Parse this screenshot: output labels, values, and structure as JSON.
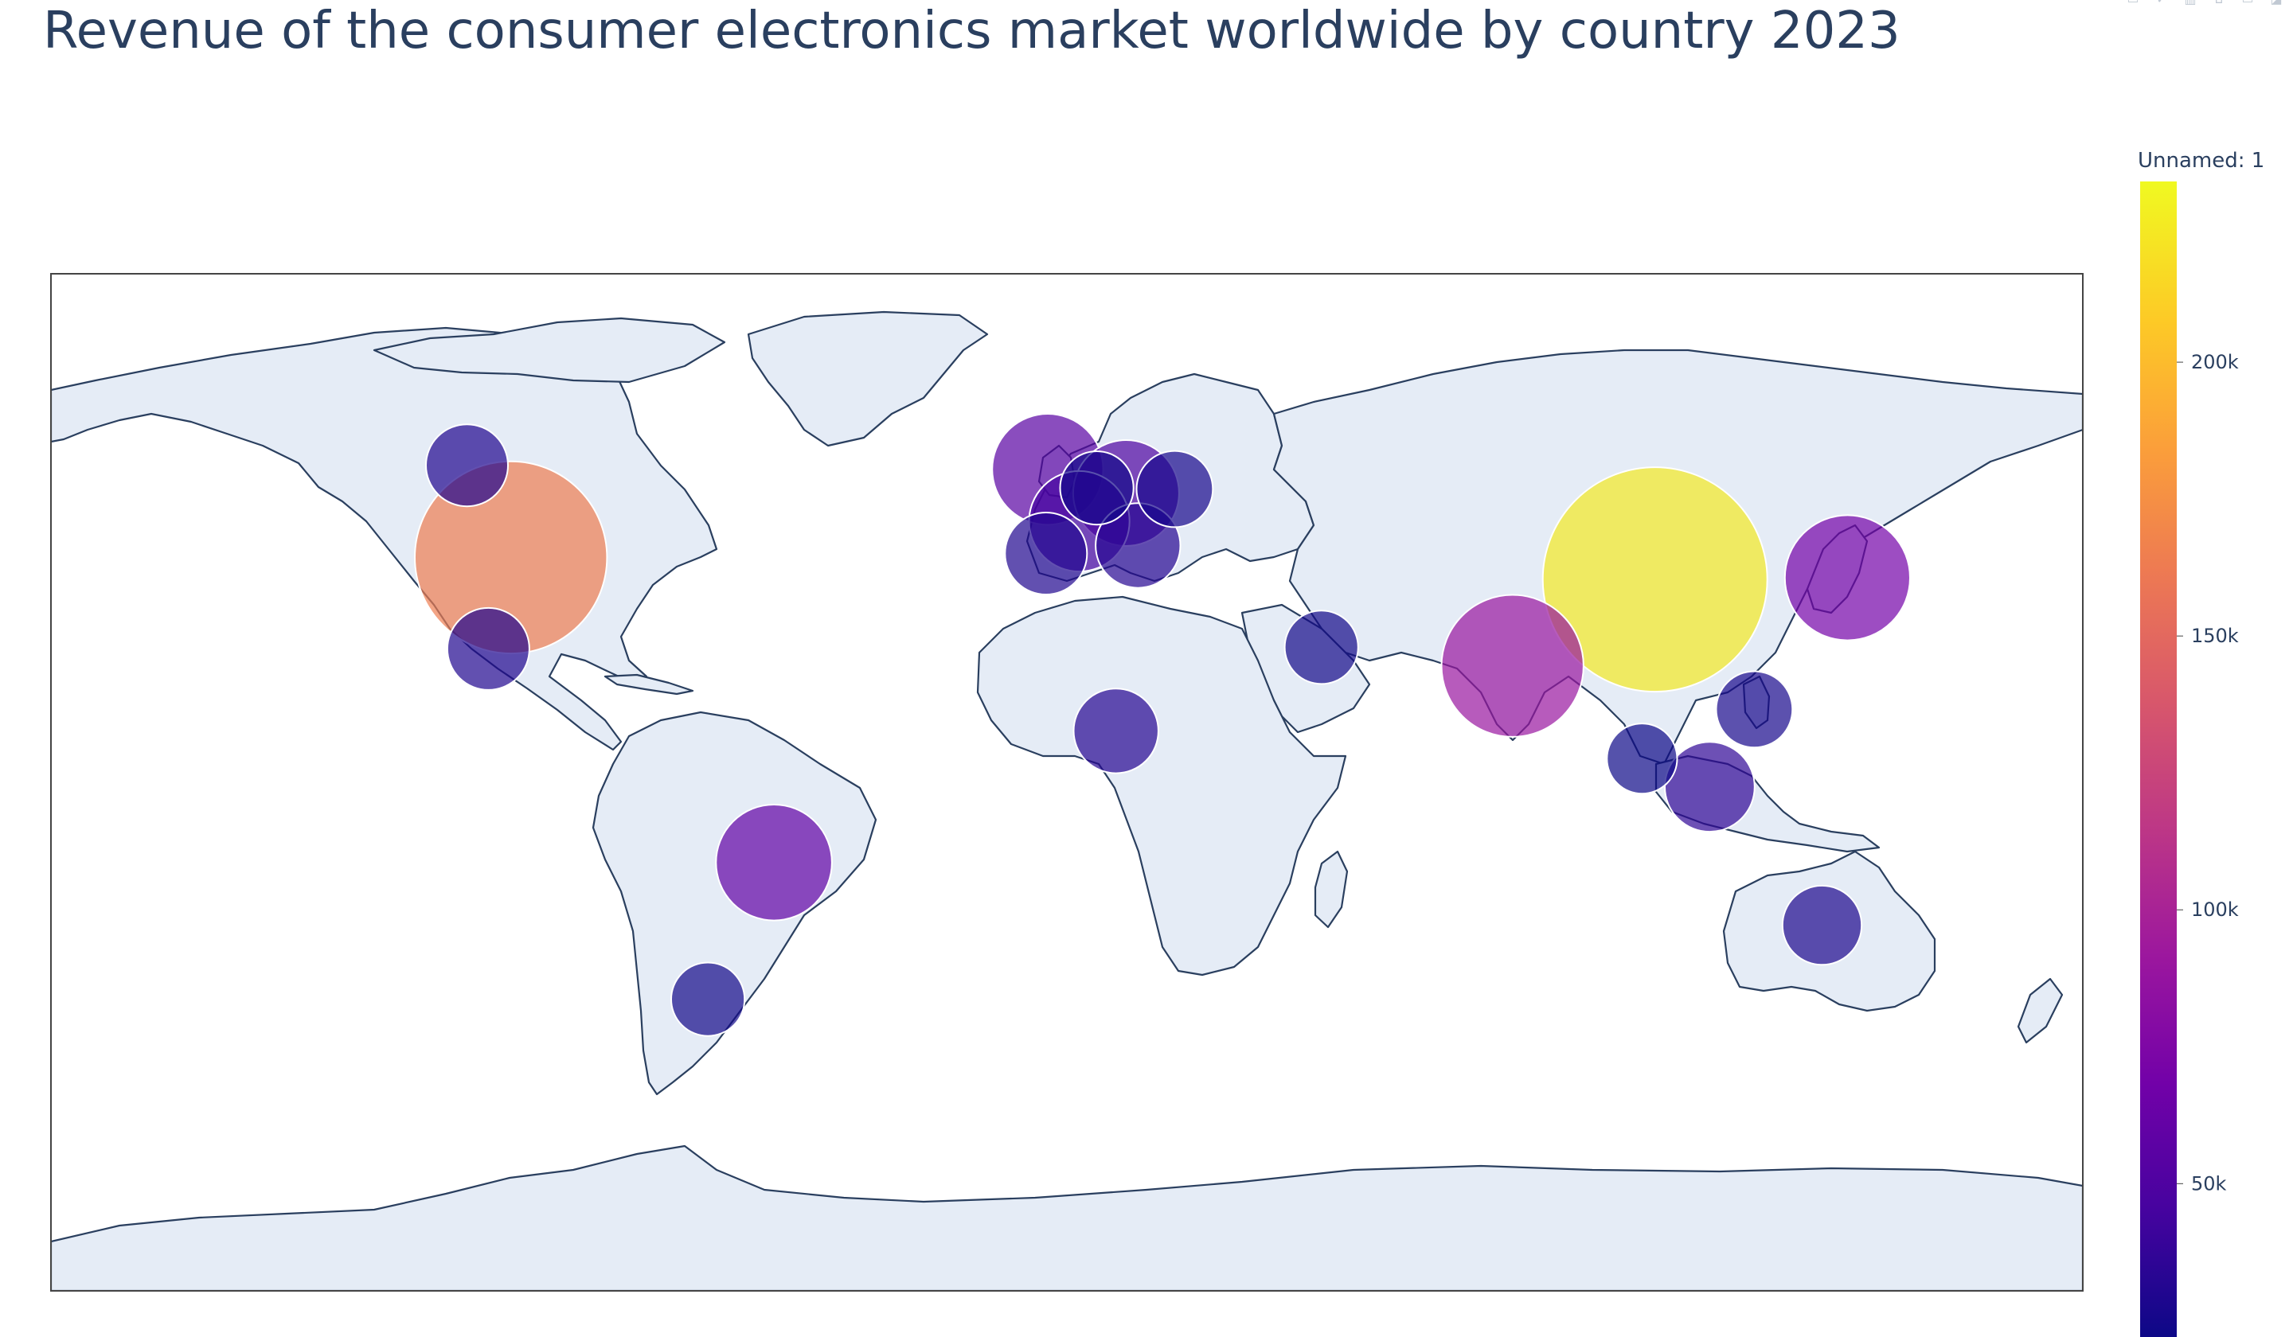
{
  "title": "Revenue of the consumer electronics market worldwide by country 2023",
  "modebar": {
    "icons": [
      "camera-icon",
      "zoom-in-icon",
      "zoom-out-icon",
      "reset-icon",
      "hover-icon",
      "logo-icon"
    ]
  },
  "chart_data": {
    "type": "scatter",
    "projection": "equirectangular",
    "title": "Revenue of the consumer electronics market worldwide by country 2023",
    "colorbar": {
      "title": "Unnamed: 1",
      "range": [
        22000,
        233000
      ],
      "ticks": [
        50000,
        100000,
        150000,
        200000
      ],
      "tick_labels": [
        "50k",
        "100k",
        "150k",
        "200k"
      ],
      "colorscale": [
        "#0d0887",
        "#46039f",
        "#7201a8",
        "#9c179e",
        "#bd3786",
        "#d8576b",
        "#ed7953",
        "#fb9f3a",
        "#fdca26",
        "#f0f921"
      ]
    },
    "points": [
      {
        "lon": -98.5,
        "lat": 39.8,
        "value": 165000
      },
      {
        "lon": -106.3,
        "lat": 56.1,
        "value": 30000
      },
      {
        "lon": -102.5,
        "lat": 23.6,
        "value": 30000
      },
      {
        "lon": -51.9,
        "lat": -14.2,
        "value": 60000
      },
      {
        "lon": -63.6,
        "lat": -38.4,
        "value": 24000
      },
      {
        "lon": -3.4,
        "lat": 55.4,
        "value": 55000
      },
      {
        "lon": 2.2,
        "lat": 46.2,
        "value": 45000
      },
      {
        "lon": 10.5,
        "lat": 51.2,
        "value": 50000
      },
      {
        "lon": 5.3,
        "lat": 52.1,
        "value": 24000
      },
      {
        "lon": 12.6,
        "lat": 41.9,
        "value": 32000
      },
      {
        "lon": -3.7,
        "lat": 40.5,
        "value": 30000
      },
      {
        "lon": 19.1,
        "lat": 51.9,
        "value": 26000
      },
      {
        "lon": 45.1,
        "lat": 23.9,
        "value": 24000
      },
      {
        "lon": 8.7,
        "lat": 9.1,
        "value": 32000
      },
      {
        "lon": 78.96,
        "lat": 20.6,
        "value": 90000
      },
      {
        "lon": 104.2,
        "lat": 35.9,
        "value": 225000
      },
      {
        "lon": 138.3,
        "lat": 36.2,
        "value": 70000
      },
      {
        "lon": 121.8,
        "lat": 12.9,
        "value": 26000
      },
      {
        "lon": 113.9,
        "lat": -0.8,
        "value": 36000
      },
      {
        "lon": 101.9,
        "lat": 4.2,
        "value": 22000
      },
      {
        "lon": 133.8,
        "lat": -25.3,
        "value": 28000
      }
    ]
  }
}
